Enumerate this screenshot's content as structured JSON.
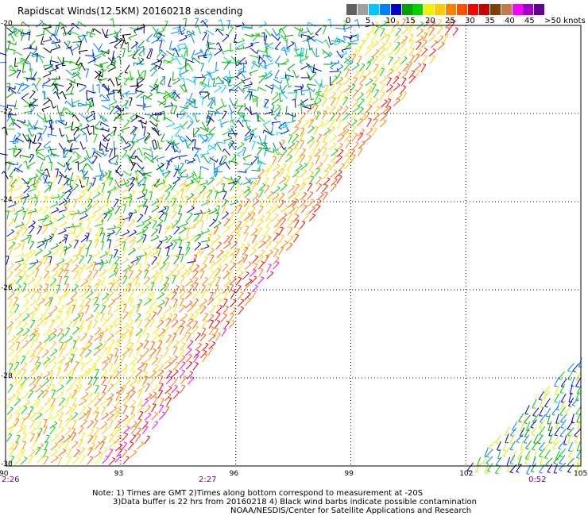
{
  "title": "Rapidscat Winds(12.5KM) 20160218 ascending",
  "legend": {
    "labels": [
      "0",
      "5",
      "10",
      "15",
      "20",
      "25",
      "30",
      "35",
      "40",
      "45",
      ">50 knots"
    ],
    "colors": [
      "#606060",
      "#a0a0a0",
      "#00c8ff",
      "#0080ff",
      "#0000c8",
      "#00a000",
      "#00d000",
      "#f0f000",
      "#ffc800",
      "#ff8000",
      "#ff5000",
      "#ff0000",
      "#c80000",
      "#804000",
      "#c87850",
      "#ff00ff",
      "#a000c8",
      "#600090"
    ]
  },
  "map": {
    "lon_range": [
      90,
      105
    ],
    "lat_range": [
      -30,
      -20
    ],
    "lon_ticks": [
      "90",
      "93",
      "96",
      "99",
      "102",
      "105"
    ],
    "lat_ticks": [
      "-20",
      "-22",
      "-24",
      "-26",
      "-28",
      "-30"
    ],
    "time_labels": [
      {
        "text": "2:26",
        "lon": 90
      },
      {
        "text": "2:27",
        "lon": 95.2
      },
      {
        "text": "0:52",
        "lon": 103.8
      }
    ]
  },
  "notes": [
    "Note: 1) Times are GMT 2)Times along bottom correspond to measurement at -20S",
    "3)Data buffer is 22 hrs from 20160218 4) Black wind barbs indicate possible contamination",
    "NOAA/NESDIS/Center for Satellite Applications and Research"
  ]
}
